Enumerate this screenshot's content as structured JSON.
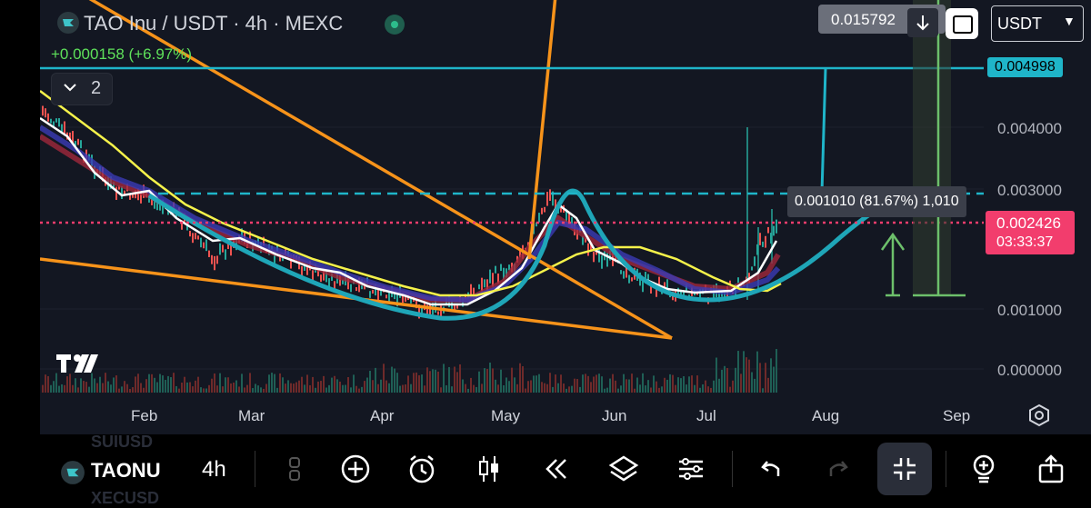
{
  "header": {
    "title": "TAO Inu / USDT · 4h · MEXC",
    "change": "+0.000158 (+6.97%)",
    "indicators_count": "2"
  },
  "top_controls": {
    "measure_price": "0.015792",
    "currency": "USDT"
  },
  "price_scale": {
    "labels": [
      "0.004000",
      "0.003000",
      "0.001000",
      "0.000000"
    ],
    "resistance_label": "0.004998",
    "current_price": "0.002426",
    "countdown": "03:33:37"
  },
  "measurement": {
    "label": "0.001010 (81.67%) 1,010"
  },
  "time_axis": {
    "labels": [
      "Feb",
      "Mar",
      "Apr",
      "May",
      "Jun",
      "Jul",
      "Aug",
      "Sep"
    ]
  },
  "toolbar": {
    "symbol": "TAONU",
    "interval": "4h",
    "ghost_above": "SUIUSD",
    "ghost_below": "XECUSD"
  },
  "icons": [
    "coin-icon",
    "chevron-down-icon",
    "tradingview-logo",
    "arrow-down-icon",
    "fullscreen-icon",
    "settings-icon",
    "plus-circle-icon",
    "alarm-icon",
    "candles-icon",
    "replay-icon",
    "layers-icon",
    "sliders-icon",
    "undo-icon",
    "redo-icon",
    "collapse-icon",
    "bulb-icon",
    "share-icon"
  ],
  "colors": {
    "background": "#131722",
    "accent_cyan": "#1fb5c9",
    "current_price": "#f23d6d",
    "positive": "#5ee05a",
    "trendline_orange": "#f7931a",
    "ma_yellow": "#f5f24a"
  }
}
